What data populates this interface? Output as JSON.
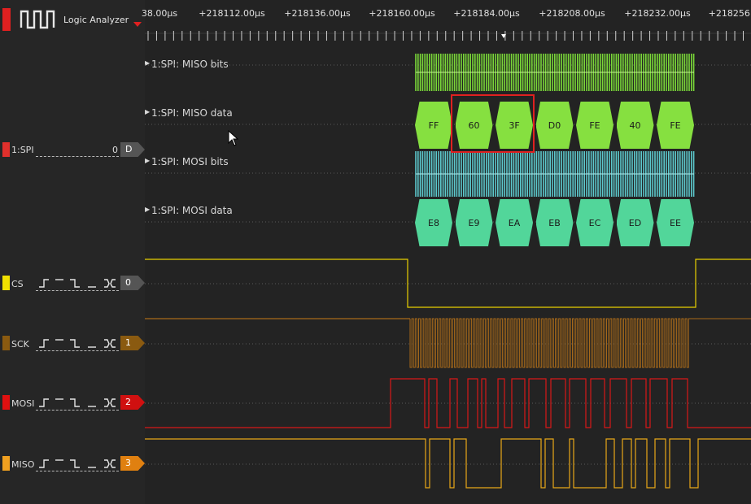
{
  "app": {
    "title": "Logic Analyzer",
    "brand_color": "#e02020"
  },
  "timeline": {
    "tick_labels": [
      "38.00µs",
      "+218112.00µs",
      "+218136.00µs",
      "+218160.00µs",
      "+218184.00µs",
      "+218208.00µs",
      "+218232.00µs",
      "+218256."
    ]
  },
  "channels": {
    "spi": {
      "name": "1:SPI",
      "value": "0",
      "tag": "D",
      "color": "#e0302c",
      "tag_color": "#555555"
    },
    "cs": {
      "name": "CS",
      "tag": "0",
      "color": "#f0e000",
      "tag_color": "#555555"
    },
    "sck": {
      "name": "SCK",
      "tag": "1",
      "color": "#8a5a10",
      "tag_color": "#8a5a10"
    },
    "mosi": {
      "name": "MOSI",
      "tag": "2",
      "color": "#e01010",
      "tag_color": "#d01010"
    },
    "miso": {
      "name": "MISO",
      "tag": "3",
      "color": "#f0a020",
      "tag_color": "#e08010"
    }
  },
  "annotations": {
    "miso_bits": {
      "label": "1:SPI: MISO bits",
      "color": "#7ad838"
    },
    "miso_data": {
      "label": "1:SPI: MISO data",
      "color": "#86e040",
      "values": [
        "FF",
        "60",
        "3F",
        "D0",
        "FE",
        "40",
        "FE"
      ]
    },
    "mosi_bits": {
      "label": "1:SPI: MOSI bits",
      "color": "#5cc8cc"
    },
    "mosi_data": {
      "label": "1:SPI: MOSI data",
      "color": "#52d69a",
      "values": [
        "E8",
        "E9",
        "EA",
        "EB",
        "EC",
        "ED",
        "EE"
      ]
    }
  },
  "signals": {
    "cs_color": "#e8d000",
    "sck_color": "#a86a1a",
    "mosi_color": "#d81818",
    "miso_color": "#e8a818"
  },
  "selection": {
    "color": "#e02020"
  }
}
